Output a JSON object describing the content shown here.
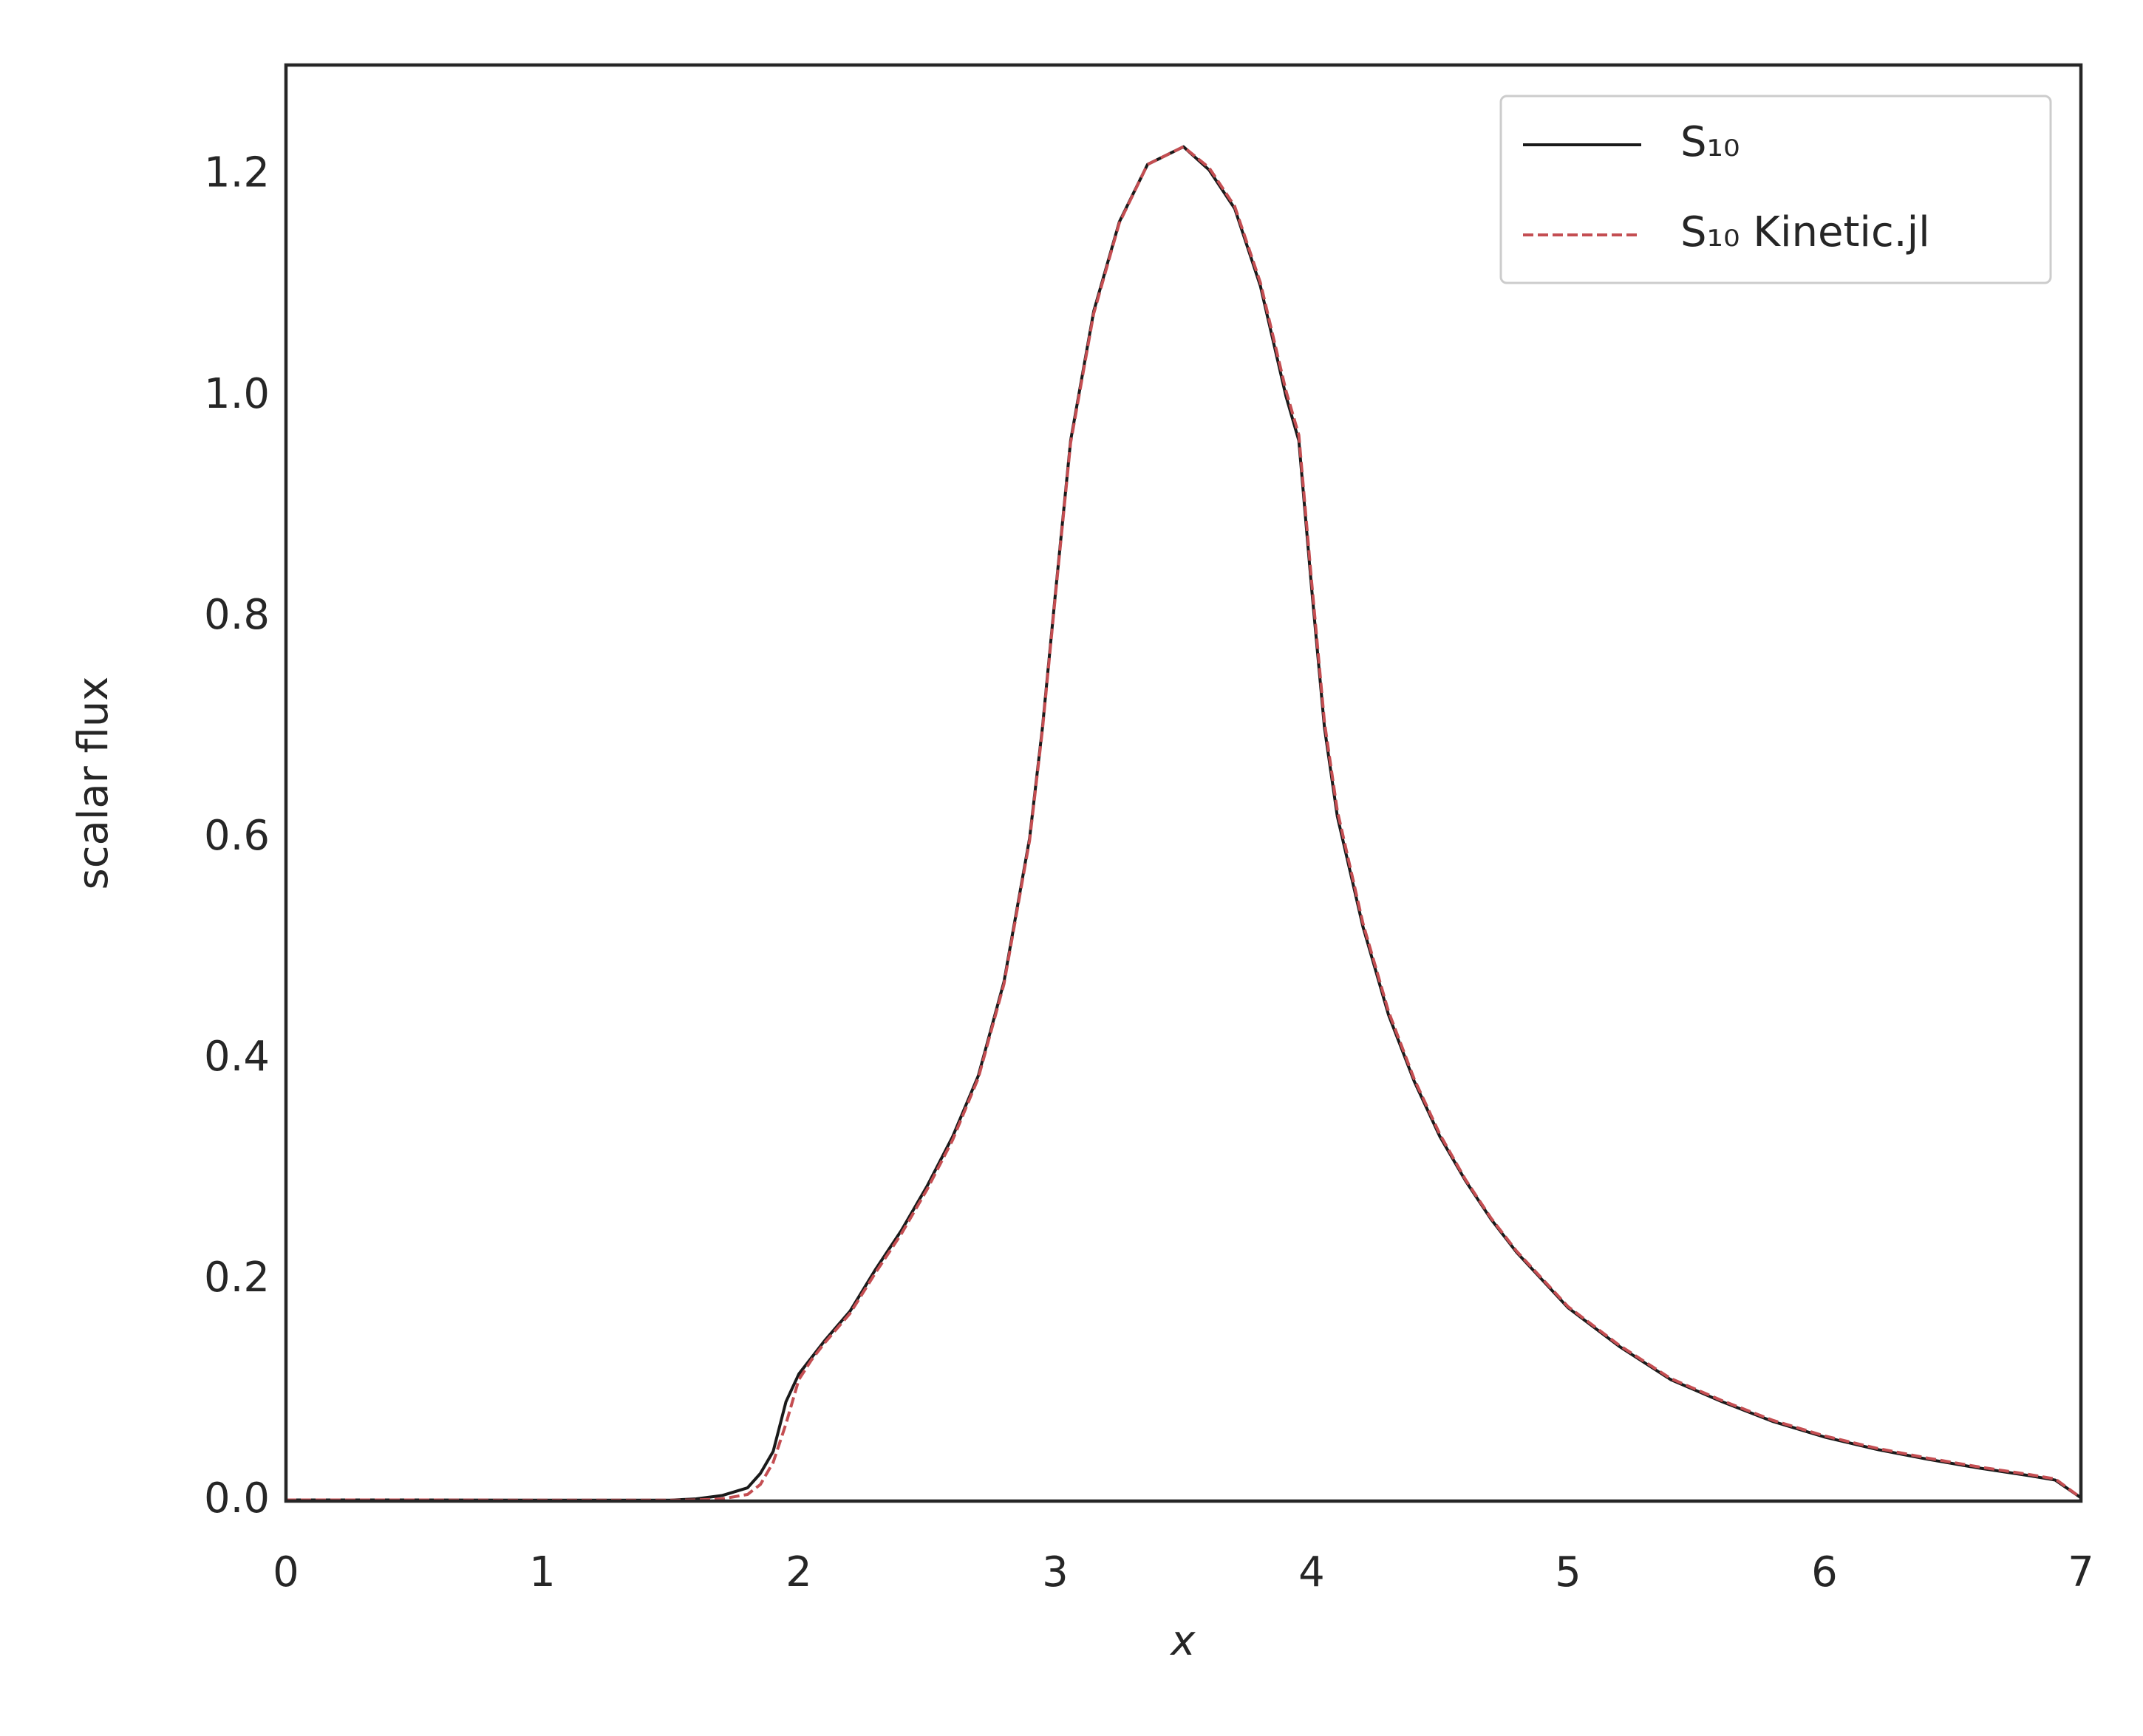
{
  "chart_data": {
    "type": "line",
    "xlabel": "x",
    "ylabel": "scalar flux",
    "x": [
      0,
      0.5,
      1,
      1.5,
      1.6,
      1.7,
      1.8,
      1.85,
      1.9,
      1.95,
      2.0,
      2.05,
      2.1,
      2.2,
      2.3,
      2.4,
      2.5,
      2.6,
      2.7,
      2.8,
      2.9,
      2.95,
      3.0,
      3.06,
      3.15,
      3.25,
      3.36,
      3.5,
      3.6,
      3.7,
      3.8,
      3.9,
      3.95,
      4.0,
      4.05,
      4.1,
      4.2,
      4.3,
      4.4,
      4.5,
      4.6,
      4.7,
      4.8,
      4.9,
      5.0,
      5.2,
      5.4,
      5.6,
      5.8,
      6.0,
      6.2,
      6.4,
      6.6,
      6.8,
      6.9,
      7.0
    ],
    "series": [
      {
        "name": "S₁₀",
        "color": "#1a1a1a",
        "linestyle": "solid",
        "values": [
          0.001,
          0.001,
          0.0008,
          0.0008,
          0.002,
          0.005,
          0.012,
          0.025,
          0.045,
          0.09,
          0.115,
          0.13,
          0.145,
          0.172,
          0.21,
          0.245,
          0.285,
          0.33,
          0.385,
          0.47,
          0.6,
          0.7,
          0.82,
          0.96,
          1.077,
          1.158,
          1.21,
          1.226,
          1.205,
          1.17,
          1.1,
          1.0,
          0.96,
          0.826,
          0.7,
          0.62,
          0.52,
          0.44,
          0.38,
          0.33,
          0.29,
          0.255,
          0.225,
          0.2,
          0.175,
          0.14,
          0.11,
          0.09,
          0.072,
          0.058,
          0.047,
          0.038,
          0.03,
          0.023,
          0.019,
          0.003
        ]
      },
      {
        "name": "S₁₀ Kinetic.jl",
        "color": "#c44e52",
        "linestyle": "dashed",
        "values": [
          0.001,
          0.001,
          0.0008,
          0.0008,
          0.001,
          0.002,
          0.006,
          0.015,
          0.035,
          0.07,
          0.11,
          0.128,
          0.143,
          0.17,
          0.207,
          0.242,
          0.282,
          0.327,
          0.383,
          0.468,
          0.598,
          0.698,
          0.818,
          0.958,
          1.075,
          1.157,
          1.21,
          1.226,
          1.207,
          1.172,
          1.103,
          1.005,
          0.965,
          0.832,
          0.705,
          0.625,
          0.523,
          0.443,
          0.382,
          0.332,
          0.291,
          0.256,
          0.226,
          0.201,
          0.176,
          0.141,
          0.111,
          0.091,
          0.073,
          0.059,
          0.048,
          0.039,
          0.031,
          0.024,
          0.02,
          0.003
        ]
      }
    ],
    "xlim": [
      0,
      7
    ],
    "xticks": [
      0,
      1,
      2,
      3,
      4,
      5,
      6,
      7
    ],
    "ylim": [
      0,
      1.3
    ],
    "yticks": [
      {
        "value": 0,
        "label": "0.0"
      },
      {
        "value": 0.2,
        "label": "0.2"
      },
      {
        "value": 0.4,
        "label": "0.4"
      },
      {
        "value": 0.6,
        "label": "0.6"
      },
      {
        "value": 0.8,
        "label": "0.8"
      },
      {
        "value": 1,
        "label": "1.0"
      },
      {
        "value": 1.2,
        "label": "1.2"
      }
    ],
    "grid": false,
    "legend": "upper right"
  }
}
